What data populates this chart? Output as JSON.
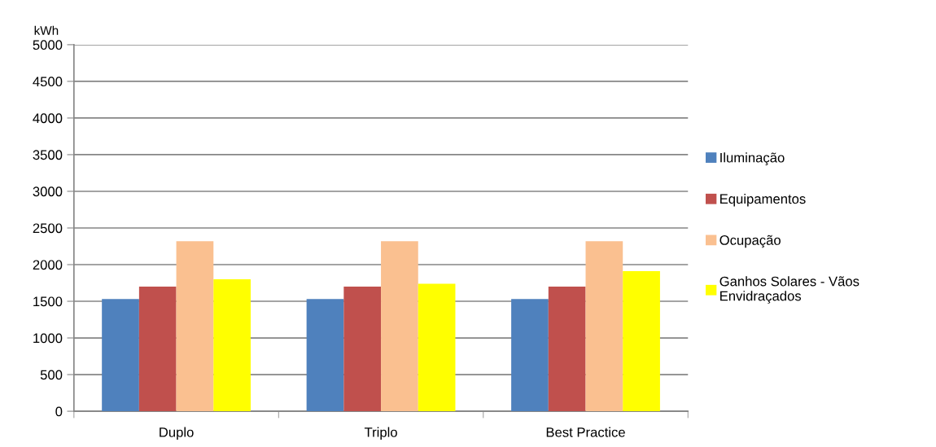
{
  "chart_data": {
    "type": "bar",
    "ylabel": "kWh",
    "categories": [
      "Duplo",
      "Triplo",
      "Best Practice"
    ],
    "series": [
      {
        "name": "Iluminação",
        "color": "#4f81bd",
        "values": [
          1530,
          1530,
          1530
        ]
      },
      {
        "name": "Equipamentos",
        "color": "#c0504d",
        "values": [
          1700,
          1700,
          1700
        ]
      },
      {
        "name": "Ocupação",
        "color": "#fac090",
        "values": [
          2320,
          2320,
          2320
        ]
      },
      {
        "name": "Ganhos Solares - Vãos Envidraçados",
        "color": "#ffff00",
        "values": [
          1800,
          1740,
          1910
        ]
      }
    ],
    "ylim": [
      0,
      5000
    ],
    "yticks": [
      0,
      500,
      1000,
      1500,
      2000,
      2500,
      3000,
      3500,
      4000,
      4500,
      5000
    ],
    "grid": "y",
    "legend": "right"
  }
}
